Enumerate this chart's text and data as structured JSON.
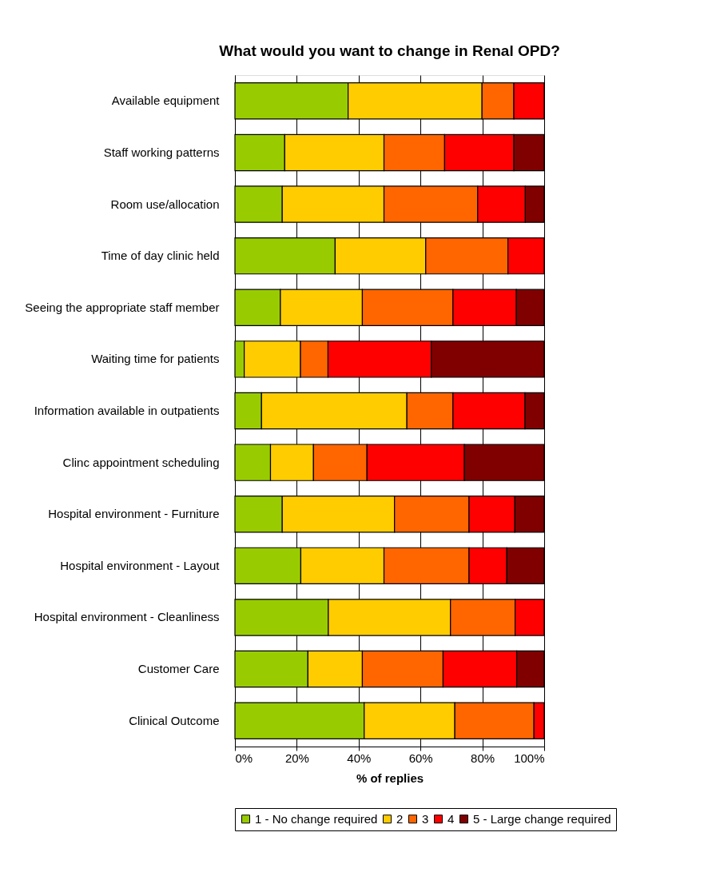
{
  "chart_data": {
    "type": "bar",
    "orientation": "horizontal",
    "stacked": true,
    "title": "What would you want to change in Renal OPD?",
    "xlabel": "% of replies",
    "categories": [
      "Available equipment",
      "Staff working patterns",
      "Room use/allocation",
      "Time of day clinic held",
      "Seeing the appropriate staff member",
      "Waiting time for patients",
      "Information available in outpatients",
      "Clinc appointment scheduling",
      "Hospital environment - Furniture",
      "Hospital environment - Layout",
      "Hospital environment - Cleanliness",
      "Customer Care",
      "Clinical Outcome"
    ],
    "series": [
      {
        "name": "1 - No change required",
        "color": "#99cc00",
        "values": [
          36.6,
          16.1,
          15.3,
          32.4,
          14.7,
          3.0,
          8.6,
          11.5,
          15.3,
          21.3,
          30.2,
          23.6,
          41.8
        ]
      },
      {
        "name": "2",
        "color": "#ffcc00",
        "values": [
          43.3,
          32.1,
          32.9,
          29.3,
          26.5,
          18.2,
          47.0,
          13.9,
          36.3,
          26.9,
          39.5,
          17.6,
          29.3
        ]
      },
      {
        "name": "3",
        "color": "#ff6600",
        "values": [
          10.3,
          19.6,
          30.3,
          26.6,
          29.3,
          8.9,
          14.9,
          17.3,
          24.1,
          27.5,
          20.9,
          26.1,
          25.6
        ]
      },
      {
        "name": "4",
        "color": "#ff0000",
        "values": [
          9.8,
          22.4,
          15.4,
          11.7,
          20.5,
          33.4,
          23.3,
          31.5,
          14.8,
          12.2,
          9.4,
          23.8,
          3.3
        ]
      },
      {
        "name": "5 - Large change required",
        "color": "#800000",
        "values": [
          null,
          9.8,
          6.1,
          null,
          9.0,
          36.5,
          6.2,
          25.8,
          9.5,
          12.1,
          null,
          8.9,
          null
        ]
      }
    ],
    "xlim": [
      0,
      100
    ],
    "xticks": [
      {
        "value": 0,
        "label": "0%"
      },
      {
        "value": 20,
        "label": "20%"
      },
      {
        "value": 40,
        "label": "40%"
      },
      {
        "value": 60,
        "label": "60%"
      },
      {
        "value": 80,
        "label": "80%"
      },
      {
        "value": 100,
        "label": "100%"
      }
    ],
    "grid": "x",
    "legend": "bottom"
  }
}
